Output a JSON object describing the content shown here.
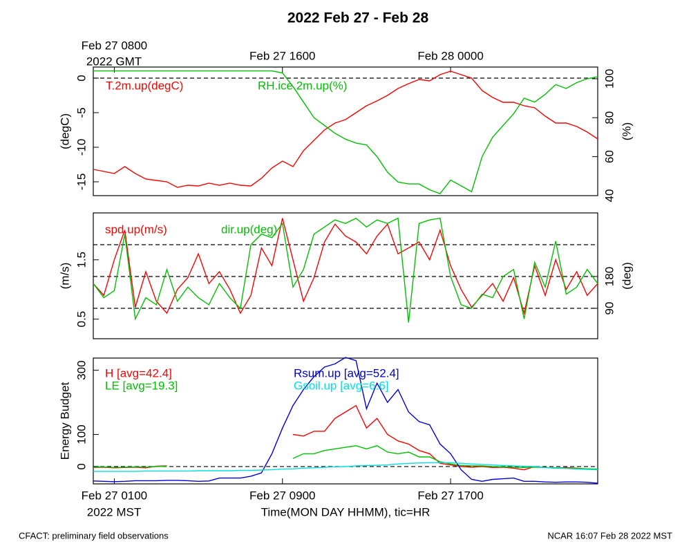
{
  "title": "2022 Feb 27 - Feb 28",
  "x_label": "Time(MON DAY HHMM), tic=HR",
  "x_year_label": "2022 MST",
  "x2_year_label": "2022 GMT",
  "footer_left": "CFACT: preliminary field observations",
  "footer_right": "NCAR 16:07 Feb 28 2022 MST",
  "chart_data": [
    {
      "type": "line",
      "ylabel": "(degC)",
      "y2label": "(%)",
      "ylim": [
        -17,
        1.6
      ],
      "yticks": [
        0,
        -5,
        -10,
        -15
      ],
      "y2lim": [
        40,
        106
      ],
      "y2ticks": [
        40,
        60,
        80,
        100
      ],
      "hlines": [
        0
      ],
      "xlim": [
        "2022-02-27T00:00",
        "2022-02-28T00:00"
      ],
      "x2ticks": [
        {
          "value": "2022-02-27T01:00",
          "label": "Feb 27 0800"
        },
        {
          "value": "2022-02-27T09:00",
          "label": "Feb 27 1600"
        },
        {
          "value": "2022-02-27T17:00",
          "label": "Feb 28 0000"
        }
      ],
      "x": [
        "2022-02-27T00:00",
        "2022-02-27T00:30",
        "2022-02-27T01:00",
        "2022-02-27T01:30",
        "2022-02-27T02:00",
        "2022-02-27T02:30",
        "2022-02-27T03:00",
        "2022-02-27T03:30",
        "2022-02-27T04:00",
        "2022-02-27T04:30",
        "2022-02-27T05:00",
        "2022-02-27T05:30",
        "2022-02-27T06:00",
        "2022-02-27T06:30",
        "2022-02-27T07:00",
        "2022-02-27T07:30",
        "2022-02-27T08:00",
        "2022-02-27T08:30",
        "2022-02-27T09:00",
        "2022-02-27T09:30",
        "2022-02-27T10:00",
        "2022-02-27T10:30",
        "2022-02-27T11:00",
        "2022-02-27T11:30",
        "2022-02-27T12:00",
        "2022-02-27T12:30",
        "2022-02-27T13:00",
        "2022-02-27T13:30",
        "2022-02-27T14:00",
        "2022-02-27T14:30",
        "2022-02-27T15:00",
        "2022-02-27T15:30",
        "2022-02-27T16:00",
        "2022-02-27T16:30",
        "2022-02-27T17:00",
        "2022-02-27T17:30",
        "2022-02-27T18:00",
        "2022-02-27T18:30",
        "2022-02-27T19:00",
        "2022-02-27T19:30",
        "2022-02-27T20:00",
        "2022-02-27T20:30",
        "2022-02-27T21:00",
        "2022-02-27T21:30",
        "2022-02-27T22:00",
        "2022-02-27T22:30",
        "2022-02-27T23:00",
        "2022-02-27T23:30",
        "2022-02-28T00:00"
      ],
      "series": [
        {
          "name": "T.2m.up(degC)",
          "color": "#ff0000",
          "values": [
            -13.2,
            -13.5,
            -13.8,
            -12.8,
            -13.8,
            -14.6,
            -14.8,
            -15.0,
            -15.8,
            -15.5,
            -15.6,
            -15.2,
            -15.5,
            -15.2,
            -15.5,
            -15.6,
            -14.5,
            -13.0,
            -12.0,
            -12.8,
            -10.5,
            -9.0,
            -7.5,
            -6.5,
            -6.0,
            -5.0,
            -4.0,
            -3.3,
            -2.5,
            -1.5,
            -0.8,
            -0.2,
            -0.4,
            0.5,
            1.0,
            0.5,
            0.0,
            -1.8,
            -2.8,
            -3.5,
            -3.5,
            -4.0,
            -4.3,
            -5.5,
            -6.5,
            -6.5,
            -7.0,
            -7.8,
            -8.8
          ]
        },
        {
          "name": "RH.ice.2m.up(%)",
          "color": "#00c000",
          "axis": "y2",
          "values": [
            104,
            104,
            104,
            104,
            104,
            104,
            104,
            104,
            104,
            104,
            104,
            104,
            104,
            104,
            104,
            104,
            104,
            104,
            103,
            96,
            88,
            80,
            76,
            72,
            69,
            67,
            66,
            60,
            52,
            47,
            46,
            46,
            43,
            41,
            48,
            45,
            42,
            60,
            70,
            76,
            82,
            90,
            88,
            92,
            97,
            95,
            98,
            100,
            101
          ]
        }
      ]
    },
    {
      "type": "line",
      "ylabel": "(m/s)",
      "y2label": "(deg)",
      "ylim": [
        0.17,
        2.29
      ],
      "yticks": [
        0.5,
        1.5
      ],
      "y2lim": [
        4,
        360
      ],
      "y2ticks": [
        90,
        180
      ],
      "hlines_y2": [
        90,
        180,
        270
      ],
      "xlim": [
        "2022-02-27T00:00",
        "2022-02-28T00:00"
      ],
      "x": [
        "2022-02-27T00:00",
        "2022-02-27T00:30",
        "2022-02-27T01:00",
        "2022-02-27T01:30",
        "2022-02-27T02:00",
        "2022-02-27T02:30",
        "2022-02-27T03:00",
        "2022-02-27T03:30",
        "2022-02-27T04:00",
        "2022-02-27T04:30",
        "2022-02-27T05:00",
        "2022-02-27T05:30",
        "2022-02-27T06:00",
        "2022-02-27T06:30",
        "2022-02-27T07:00",
        "2022-02-27T07:30",
        "2022-02-27T08:00",
        "2022-02-27T08:30",
        "2022-02-27T09:00",
        "2022-02-27T09:30",
        "2022-02-27T10:00",
        "2022-02-27T10:30",
        "2022-02-27T11:00",
        "2022-02-27T11:30",
        "2022-02-27T12:00",
        "2022-02-27T12:30",
        "2022-02-27T13:00",
        "2022-02-27T13:30",
        "2022-02-27T14:00",
        "2022-02-27T14:30",
        "2022-02-27T15:00",
        "2022-02-27T15:30",
        "2022-02-27T16:00",
        "2022-02-27T16:30",
        "2022-02-27T17:00",
        "2022-02-27T17:30",
        "2022-02-27T18:00",
        "2022-02-27T18:30",
        "2022-02-27T19:00",
        "2022-02-27T19:30",
        "2022-02-27T20:00",
        "2022-02-27T20:30",
        "2022-02-27T21:00",
        "2022-02-27T21:30",
        "2022-02-27T22:00",
        "2022-02-27T22:30",
        "2022-02-27T23:00",
        "2022-02-27T23:30",
        "2022-02-28T00:00"
      ],
      "series": [
        {
          "name": "spd.up(m/s)",
          "color": "#ff0000",
          "values": [
            1.1,
            0.9,
            1.5,
            2.0,
            0.7,
            1.3,
            0.8,
            0.6,
            1.0,
            1.2,
            1.6,
            1.1,
            1.3,
            1.0,
            0.6,
            0.9,
            1.7,
            1.4,
            2.2,
            1.5,
            0.8,
            1.2,
            1.8,
            2.1,
            1.9,
            1.8,
            1.6,
            1.9,
            2.1,
            1.6,
            1.7,
            1.8,
            1.5,
            2.0,
            1.4,
            1.0,
            0.7,
            0.9,
            1.1,
            0.8,
            1.2,
            0.6,
            1.4,
            0.9,
            1.5,
            1.0,
            1.3,
            0.9,
            1.1
          ]
        },
        {
          "name": "dir.up(deg)",
          "color": "#00c000",
          "axis": "y2",
          "values": [
            160,
            120,
            140,
            300,
            60,
            120,
            100,
            200,
            110,
            150,
            120,
            100,
            160,
            120,
            90,
            270,
            300,
            290,
            330,
            150,
            200,
            300,
            320,
            340,
            330,
            345,
            320,
            340,
            330,
            345,
            50,
            330,
            340,
            345,
            180,
            100,
            90,
            130,
            120,
            180,
            200,
            60,
            220,
            150,
            280,
            130,
            150,
            200,
            160
          ]
        }
      ]
    },
    {
      "type": "line",
      "ylabel": "Energy Budget",
      "ylim": [
        -54,
        338
      ],
      "yticks": [
        0,
        100,
        300
      ],
      "hlines": [
        0
      ],
      "xlim": [
        "2022-02-27T00:00",
        "2022-02-28T00:00"
      ],
      "xticks": [
        {
          "value": "2022-02-27T01:00",
          "label": "Feb 27 0100"
        },
        {
          "value": "2022-02-27T09:00",
          "label": "Feb 27 0900"
        },
        {
          "value": "2022-02-27T17:00",
          "label": "Feb 27 1700"
        }
      ],
      "x": [
        "2022-02-27T00:00",
        "2022-02-27T00:30",
        "2022-02-27T01:00",
        "2022-02-27T01:30",
        "2022-02-27T02:00",
        "2022-02-27T02:30",
        "2022-02-27T03:00",
        "2022-02-27T03:30",
        "2022-02-27T04:00",
        "2022-02-27T04:30",
        "2022-02-27T05:00",
        "2022-02-27T05:30",
        "2022-02-27T06:00",
        "2022-02-27T06:30",
        "2022-02-27T07:00",
        "2022-02-27T07:30",
        "2022-02-27T08:00",
        "2022-02-27T08:30",
        "2022-02-27T09:00",
        "2022-02-27T09:30",
        "2022-02-27T10:00",
        "2022-02-27T10:30",
        "2022-02-27T11:00",
        "2022-02-27T11:30",
        "2022-02-27T12:00",
        "2022-02-27T12:30",
        "2022-02-27T13:00",
        "2022-02-27T13:30",
        "2022-02-27T14:00",
        "2022-02-27T14:30",
        "2022-02-27T15:00",
        "2022-02-27T15:30",
        "2022-02-27T16:00",
        "2022-02-27T16:30",
        "2022-02-27T17:00",
        "2022-02-27T17:30",
        "2022-02-27T18:00",
        "2022-02-27T18:30",
        "2022-02-27T19:00",
        "2022-02-27T19:30",
        "2022-02-27T20:00",
        "2022-02-27T20:30",
        "2022-02-27T21:00",
        "2022-02-27T21:30",
        "2022-02-27T22:00",
        "2022-02-27T22:30",
        "2022-02-27T23:00",
        "2022-02-27T23:30",
        "2022-02-28T00:00"
      ],
      "series": [
        {
          "name": "H [avg=42.4]",
          "color": "#ff0000",
          "values": [
            -3,
            -2,
            -4,
            -3,
            -2,
            -4,
            1,
            2,
            null,
            null,
            null,
            null,
            null,
            null,
            null,
            null,
            null,
            null,
            null,
            100,
            95,
            110,
            110,
            150,
            170,
            190,
            120,
            150,
            100,
            80,
            70,
            50,
            40,
            10,
            5,
            0,
            -2,
            0,
            -3,
            -2,
            -5,
            -10,
            0,
            -3,
            -5,
            -3,
            -5,
            -8,
            -10
          ]
        },
        {
          "name": "LE [avg=19.3]",
          "color": "#00c000",
          "values": [
            -2,
            -1,
            -3,
            -2,
            -1,
            -2,
            0,
            1,
            null,
            null,
            null,
            null,
            null,
            null,
            null,
            null,
            null,
            null,
            null,
            25,
            40,
            40,
            50,
            55,
            60,
            65,
            55,
            65,
            45,
            40,
            45,
            30,
            30,
            15,
            8,
            3,
            2,
            2,
            0,
            -1,
            -2,
            -3,
            -2,
            -3,
            -4,
            -5,
            -6,
            -7,
            -8
          ]
        },
        {
          "name": "Rsum.up [avg=52.4]",
          "color": "#0000dd",
          "values": [
            -45,
            -46,
            -47,
            -46,
            -44,
            -44,
            -44,
            -43,
            -43,
            -44,
            -46,
            -45,
            -36,
            -36,
            -36,
            -30,
            -20,
            40,
            120,
            190,
            240,
            280,
            310,
            320,
            340,
            330,
            180,
            260,
            200,
            240,
            170,
            140,
            130,
            70,
            40,
            -10,
            -40,
            -46,
            -40,
            -38,
            -36,
            -46,
            -46,
            -48,
            -49,
            -48,
            -48,
            -49,
            -52
          ]
        },
        {
          "name": "Gsoil.up [avg=6.6]",
          "color": "#00e0e0",
          "values": [
            -15,
            -15,
            -15,
            -15,
            -15,
            -14,
            -14,
            -14,
            -14,
            -14,
            -13,
            -13,
            -13,
            -13,
            -12,
            -12,
            -11,
            -10,
            -8,
            -7,
            -5,
            -4,
            -2,
            -1,
            0,
            2,
            3,
            4,
            5,
            8,
            10,
            11,
            12,
            12,
            12,
            10,
            8,
            6,
            5,
            3,
            2,
            1,
            0,
            -3,
            -5,
            -6,
            -8,
            -9,
            -10
          ]
        }
      ]
    }
  ]
}
